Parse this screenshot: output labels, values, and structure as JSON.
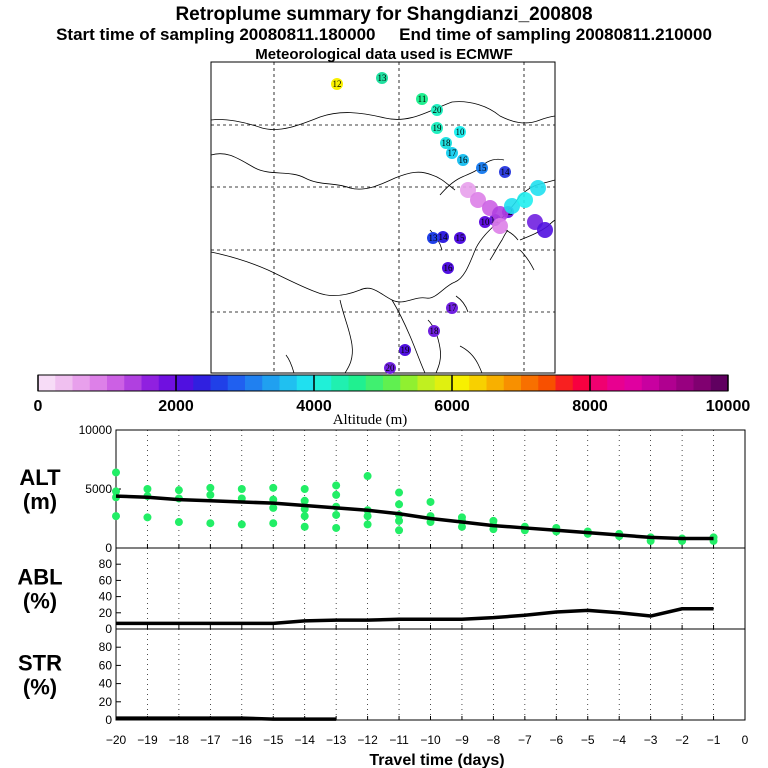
{
  "header": {
    "title": "Retroplume summary for Shangdianzi_200808",
    "start_label": "Start time of sampling 20080811.180000",
    "end_label": "End time of sampling 20080811.210000",
    "met_label": "Meteorological data used is ECMWF"
  },
  "colorbar": {
    "title": "Altitude (m)",
    "tick_labels": [
      "0",
      "2000",
      "4000",
      "6000",
      "8000",
      "10000"
    ],
    "tick_values": [
      0,
      2000,
      4000,
      6000,
      8000,
      10000
    ],
    "colors": [
      "#f7dcf7",
      "#f0c0f0",
      "#e8a0ec",
      "#dd80e8",
      "#cc60e4",
      "#b040e0",
      "#9020e0",
      "#7010e0",
      "#5010e0",
      "#3020e0",
      "#2040e8",
      "#2060f0",
      "#2080f0",
      "#20a0f0",
      "#20c0f0",
      "#20e0f0",
      "#20f0d8",
      "#20f0b0",
      "#20f090",
      "#40f070",
      "#60f050",
      "#90f030",
      "#c0f020",
      "#e0f010",
      "#f8f000",
      "#f8d000",
      "#f8b000",
      "#f89000",
      "#f87000",
      "#f85000",
      "#f82020",
      "#f80040",
      "#f00070",
      "#e80090",
      "#e000a0",
      "#c800a0",
      "#b00090",
      "#980080",
      "#800070",
      "#600060"
    ]
  },
  "map": {
    "trajectory_labels": [
      "12",
      "13",
      "11",
      "20",
      "19",
      "18",
      "17",
      "16",
      "15",
      "14",
      "10",
      "20",
      "19",
      "18",
      "17",
      "16",
      "15",
      "14",
      "13",
      "12",
      "11",
      "10"
    ],
    "marker_colors": [
      "#f8f000",
      "#20e0a0",
      "#20f090",
      "#20f0c0",
      "#20f0c0",
      "#20e0e0",
      "#20d0f0",
      "#20c0f0",
      "#2080f0",
      "#3040e0",
      "#20f0f0",
      "#7020e0",
      "#5010e0",
      "#7020e0",
      "#7020e0",
      "#5010e0",
      "#5010e0",
      "#3020e0",
      "#2040e8",
      "#7020e0",
      "#7020e0",
      "#6010e0"
    ]
  },
  "chart_data": [
    {
      "type": "line",
      "panel": "ALT",
      "ylabel": "ALT\n(m)",
      "ylabel_lines": [
        "ALT",
        "(m)"
      ],
      "ylim": [
        0,
        10000
      ],
      "yticks": [
        0,
        5000,
        10000
      ],
      "ytick_labels": [
        "0",
        "5000",
        "10000"
      ],
      "x": [
        -20,
        -19,
        -18,
        -17,
        -16,
        -15,
        -14,
        -13,
        -12,
        -11,
        -10,
        -9,
        -8,
        -7,
        -6,
        -5,
        -4,
        -3,
        -2,
        -1
      ],
      "series": [
        {
          "name": "mean altitude",
          "values": [
            4400,
            4300,
            4100,
            4000,
            3900,
            3800,
            3600,
            3400,
            3200,
            2900,
            2500,
            2200,
            1900,
            1700,
            1500,
            1300,
            1100,
            900,
            800,
            800
          ]
        }
      ],
      "scatter_points": [
        {
          "x": -20,
          "y": 6400
        },
        {
          "x": -20,
          "y": 4800
        },
        {
          "x": -20,
          "y": 4300
        },
        {
          "x": -20,
          "y": 2700
        },
        {
          "x": -19,
          "y": 5000
        },
        {
          "x": -19,
          "y": 4400
        },
        {
          "x": -19,
          "y": 2600
        },
        {
          "x": -18,
          "y": 4900
        },
        {
          "x": -18,
          "y": 4200
        },
        {
          "x": -18,
          "y": 2200
        },
        {
          "x": -17,
          "y": 5100
        },
        {
          "x": -17,
          "y": 4500
        },
        {
          "x": -17,
          "y": 2100
        },
        {
          "x": -16,
          "y": 5000
        },
        {
          "x": -16,
          "y": 4200
        },
        {
          "x": -16,
          "y": 2000
        },
        {
          "x": -15,
          "y": 5100
        },
        {
          "x": -15,
          "y": 4100
        },
        {
          "x": -15,
          "y": 3400
        },
        {
          "x": -15,
          "y": 2100
        },
        {
          "x": -14,
          "y": 5000
        },
        {
          "x": -14,
          "y": 4000
        },
        {
          "x": -14,
          "y": 3300
        },
        {
          "x": -14,
          "y": 2700
        },
        {
          "x": -14,
          "y": 1800
        },
        {
          "x": -13,
          "y": 5300
        },
        {
          "x": -13,
          "y": 4500
        },
        {
          "x": -13,
          "y": 3500
        },
        {
          "x": -13,
          "y": 2800
        },
        {
          "x": -13,
          "y": 1700
        },
        {
          "x": -12,
          "y": 6100
        },
        {
          "x": -12,
          "y": 3200
        },
        {
          "x": -12,
          "y": 2700
        },
        {
          "x": -12,
          "y": 2000
        },
        {
          "x": -11,
          "y": 4700
        },
        {
          "x": -11,
          "y": 3700
        },
        {
          "x": -11,
          "y": 2800
        },
        {
          "x": -11,
          "y": 2300
        },
        {
          "x": -11,
          "y": 1500
        },
        {
          "x": -10,
          "y": 3900
        },
        {
          "x": -10,
          "y": 2700
        },
        {
          "x": -10,
          "y": 2200
        },
        {
          "x": -9,
          "y": 2600
        },
        {
          "x": -9,
          "y": 2300
        },
        {
          "x": -9,
          "y": 1800
        },
        {
          "x": -8,
          "y": 2300
        },
        {
          "x": -8,
          "y": 1900
        },
        {
          "x": -8,
          "y": 1600
        },
        {
          "x": -7,
          "y": 1800
        },
        {
          "x": -7,
          "y": 1500
        },
        {
          "x": -6,
          "y": 1700
        },
        {
          "x": -6,
          "y": 1400
        },
        {
          "x": -5,
          "y": 1400
        },
        {
          "x": -5,
          "y": 1200
        },
        {
          "x": -4,
          "y": 1200
        },
        {
          "x": -4,
          "y": 1000
        },
        {
          "x": -3,
          "y": 900
        },
        {
          "x": -3,
          "y": 600
        },
        {
          "x": -2,
          "y": 800
        },
        {
          "x": -2,
          "y": 600
        },
        {
          "x": -1,
          "y": 900
        },
        {
          "x": -1,
          "y": 600
        }
      ],
      "scatter_color": "#22ee66"
    },
    {
      "type": "line",
      "panel": "ABL",
      "ylabel": "ABL\n(%)",
      "ylabel_lines": [
        "ABL",
        "(%)"
      ],
      "ylim": [
        0,
        100
      ],
      "yticks": [
        0,
        20,
        40,
        60,
        80
      ],
      "ytick_labels": [
        "0",
        "20",
        "40",
        "60",
        "80"
      ],
      "x": [
        -20,
        -19,
        -18,
        -17,
        -16,
        -15,
        -14,
        -13,
        -12,
        -11,
        -10,
        -9,
        -8,
        -7,
        -6,
        -5,
        -4,
        -3,
        -2,
        -1
      ],
      "series": [
        {
          "name": "ABL fraction",
          "values": [
            7,
            7,
            7,
            7,
            7,
            7,
            10,
            11,
            11,
            12,
            12,
            12,
            14,
            17,
            21,
            23,
            20,
            16,
            25,
            25
          ]
        }
      ]
    },
    {
      "type": "line",
      "panel": "STR",
      "ylabel": "STR\n(%)",
      "ylabel_lines": [
        "STR",
        "(%)"
      ],
      "ylim": [
        0,
        100
      ],
      "yticks": [
        0,
        20,
        40,
        60,
        80
      ],
      "ytick_labels": [
        "0",
        "20",
        "40",
        "60",
        "80"
      ],
      "x": [
        -20,
        -19,
        -18,
        -17,
        -16,
        -15,
        -14,
        -13
      ],
      "series": [
        {
          "name": "stratospheric fraction",
          "values": [
            2,
            2,
            2,
            2,
            2,
            1,
            1,
            1
          ]
        }
      ]
    }
  ],
  "xaxis": {
    "xlabel": "Travel time (days)",
    "xlim": [
      -20,
      0
    ],
    "tick_labels": [
      "−20",
      "−19",
      "−18",
      "−17",
      "−16",
      "−15",
      "−14",
      "−13",
      "−12",
      "−11",
      "−10",
      "−9",
      "−8",
      "−7",
      "−6",
      "−5",
      "−4",
      "−3",
      "−2",
      "−1",
      "0"
    ]
  }
}
